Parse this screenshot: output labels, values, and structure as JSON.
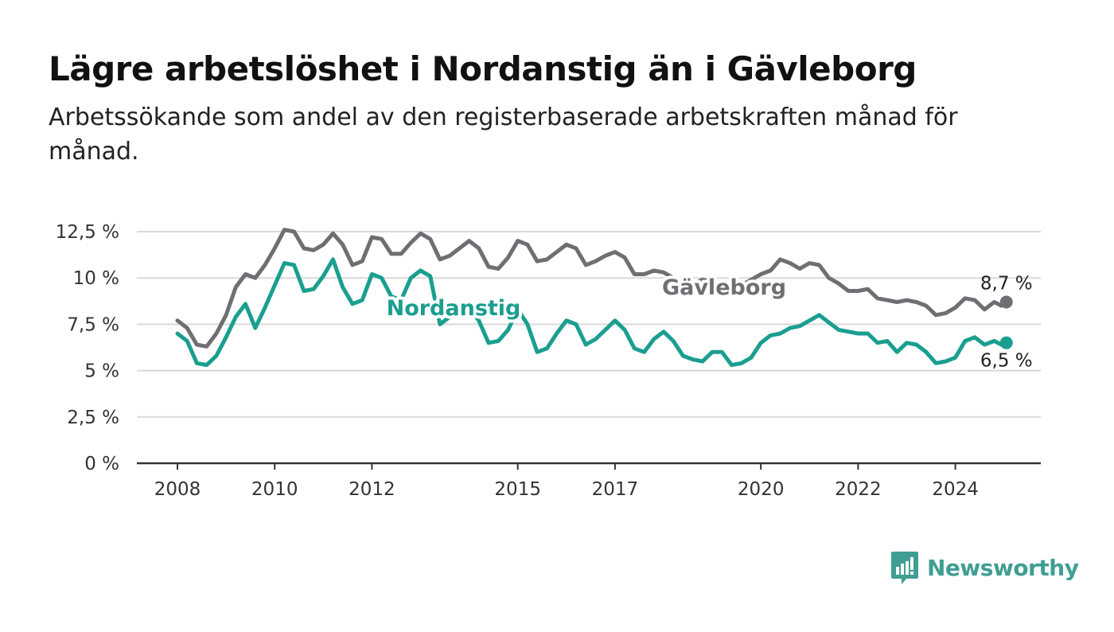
{
  "title": "Lägre arbetslöshet i Nordanstig än i Gävleborg",
  "subtitle": "Arbetssökande som andel av den registerbaserade arbetskraften månad för månad.",
  "brand": {
    "name": "Newsworthy",
    "icon": "newsworthy-logo-icon",
    "color": "#3f9e92"
  },
  "colors": {
    "gavleborg": "#6f6e73",
    "nordanstig": "#1a9e8f",
    "grid": "#d9d9d9",
    "axis": "#333333"
  },
  "chart_data": {
    "type": "line",
    "title": "Lägre arbetslöshet i Nordanstig än i Gävleborg",
    "xlabel": "",
    "ylabel": "",
    "xlim": [
      2007.5,
      2026.7
    ],
    "ylim": [
      0,
      12.5
    ],
    "x_ticks": [
      {
        "value": 2008,
        "label": "2008"
      },
      {
        "value": 2010,
        "label": "2010"
      },
      {
        "value": 2012,
        "label": "2012"
      },
      {
        "value": 2015,
        "label": "2015"
      },
      {
        "value": 2017,
        "label": "2017"
      },
      {
        "value": 2020,
        "label": "2020"
      },
      {
        "value": 2022,
        "label": "2022"
      },
      {
        "value": 2024,
        "label": "2024"
      }
    ],
    "y_ticks": [
      {
        "value": 0,
        "label": "0 %"
      },
      {
        "value": 2.5,
        "label": "2,5 %"
      },
      {
        "value": 5,
        "label": "5 %"
      },
      {
        "value": 7.5,
        "label": "7,5 %"
      },
      {
        "value": 10,
        "label": "10 %"
      },
      {
        "value": 12.5,
        "label": "12,5 %"
      }
    ],
    "grid": true,
    "legend": "direct labels on lines",
    "series": [
      {
        "name": "Gävleborg",
        "color": "#6f6e73",
        "end_label": "8,7 %",
        "points": [
          [
            2008.0,
            7.7
          ],
          [
            2008.2,
            7.3
          ],
          [
            2008.4,
            6.4
          ],
          [
            2008.6,
            6.3
          ],
          [
            2008.8,
            7.0
          ],
          [
            2009.0,
            8.0
          ],
          [
            2009.2,
            9.5
          ],
          [
            2009.4,
            10.2
          ],
          [
            2009.6,
            10.0
          ],
          [
            2009.8,
            10.7
          ],
          [
            2010.0,
            11.6
          ],
          [
            2010.2,
            12.6
          ],
          [
            2010.4,
            12.5
          ],
          [
            2010.6,
            11.6
          ],
          [
            2010.8,
            11.5
          ],
          [
            2011.0,
            11.8
          ],
          [
            2011.2,
            12.4
          ],
          [
            2011.4,
            11.8
          ],
          [
            2011.6,
            10.7
          ],
          [
            2011.8,
            10.9
          ],
          [
            2012.0,
            12.2
          ],
          [
            2012.2,
            12.1
          ],
          [
            2012.4,
            11.3
          ],
          [
            2012.6,
            11.3
          ],
          [
            2012.8,
            11.9
          ],
          [
            2013.0,
            12.4
          ],
          [
            2013.2,
            12.1
          ],
          [
            2013.4,
            11.0
          ],
          [
            2013.6,
            11.2
          ],
          [
            2013.8,
            11.6
          ],
          [
            2014.0,
            12.0
          ],
          [
            2014.2,
            11.6
          ],
          [
            2014.4,
            10.6
          ],
          [
            2014.6,
            10.5
          ],
          [
            2014.8,
            11.1
          ],
          [
            2015.0,
            12.0
          ],
          [
            2015.2,
            11.8
          ],
          [
            2015.4,
            10.9
          ],
          [
            2015.6,
            11.0
          ],
          [
            2015.8,
            11.4
          ],
          [
            2016.0,
            11.8
          ],
          [
            2016.2,
            11.6
          ],
          [
            2016.4,
            10.7
          ],
          [
            2016.6,
            10.9
          ],
          [
            2016.8,
            11.2
          ],
          [
            2017.0,
            11.4
          ],
          [
            2017.2,
            11.1
          ],
          [
            2017.4,
            10.2
          ],
          [
            2017.6,
            10.2
          ],
          [
            2017.8,
            10.4
          ],
          [
            2018.0,
            10.3
          ],
          [
            2018.2,
            10.0
          ],
          [
            2018.4,
            9.6
          ],
          [
            2018.6,
            9.7
          ],
          [
            2018.8,
            9.9
          ],
          [
            2019.0,
            9.8
          ],
          [
            2019.2,
            9.6
          ],
          [
            2019.4,
            9.5
          ],
          [
            2019.6,
            9.6
          ],
          [
            2019.8,
            9.9
          ],
          [
            2020.0,
            10.2
          ],
          [
            2020.2,
            10.4
          ],
          [
            2020.4,
            11.0
          ],
          [
            2020.6,
            10.8
          ],
          [
            2020.8,
            10.5
          ],
          [
            2021.0,
            10.8
          ],
          [
            2021.2,
            10.7
          ],
          [
            2021.4,
            10.0
          ],
          [
            2021.6,
            9.7
          ],
          [
            2021.8,
            9.3
          ],
          [
            2022.0,
            9.3
          ],
          [
            2022.2,
            9.4
          ],
          [
            2022.4,
            8.9
          ],
          [
            2022.6,
            8.8
          ],
          [
            2022.8,
            8.7
          ],
          [
            2023.0,
            8.8
          ],
          [
            2023.2,
            8.7
          ],
          [
            2023.4,
            8.5
          ],
          [
            2023.6,
            8.0
          ],
          [
            2023.8,
            8.1
          ],
          [
            2024.0,
            8.4
          ],
          [
            2024.2,
            8.9
          ],
          [
            2024.4,
            8.8
          ],
          [
            2024.6,
            8.3
          ],
          [
            2024.8,
            8.7
          ],
          [
            2024.95,
            8.5
          ],
          [
            2025.05,
            8.7
          ]
        ]
      },
      {
        "name": "Nordanstig",
        "color": "#1a9e8f",
        "end_label": "6,5 %",
        "points": [
          [
            2008.0,
            7.0
          ],
          [
            2008.2,
            6.6
          ],
          [
            2008.4,
            5.4
          ],
          [
            2008.6,
            5.3
          ],
          [
            2008.8,
            5.8
          ],
          [
            2009.0,
            6.8
          ],
          [
            2009.2,
            7.9
          ],
          [
            2009.4,
            8.6
          ],
          [
            2009.6,
            7.3
          ],
          [
            2009.8,
            8.4
          ],
          [
            2010.0,
            9.6
          ],
          [
            2010.2,
            10.8
          ],
          [
            2010.4,
            10.7
          ],
          [
            2010.6,
            9.3
          ],
          [
            2010.8,
            9.4
          ],
          [
            2011.0,
            10.1
          ],
          [
            2011.2,
            11.0
          ],
          [
            2011.4,
            9.5
          ],
          [
            2011.6,
            8.6
          ],
          [
            2011.8,
            8.8
          ],
          [
            2012.0,
            10.2
          ],
          [
            2012.2,
            10.0
          ],
          [
            2012.4,
            9.0
          ],
          [
            2012.6,
            8.8
          ],
          [
            2012.8,
            10.0
          ],
          [
            2013.0,
            10.4
          ],
          [
            2013.2,
            10.1
          ],
          [
            2013.4,
            7.5
          ],
          [
            2013.6,
            7.9
          ],
          [
            2013.8,
            8.3
          ],
          [
            2014.0,
            8.4
          ],
          [
            2014.2,
            7.7
          ],
          [
            2014.4,
            6.5
          ],
          [
            2014.6,
            6.6
          ],
          [
            2014.8,
            7.2
          ],
          [
            2015.0,
            8.3
          ],
          [
            2015.2,
            7.5
          ],
          [
            2015.4,
            6.0
          ],
          [
            2015.6,
            6.2
          ],
          [
            2015.8,
            7.0
          ],
          [
            2016.0,
            7.7
          ],
          [
            2016.2,
            7.5
          ],
          [
            2016.4,
            6.4
          ],
          [
            2016.6,
            6.7
          ],
          [
            2016.8,
            7.2
          ],
          [
            2017.0,
            7.7
          ],
          [
            2017.2,
            7.2
          ],
          [
            2017.4,
            6.2
          ],
          [
            2017.6,
            6.0
          ],
          [
            2017.8,
            6.7
          ],
          [
            2018.0,
            7.1
          ],
          [
            2018.2,
            6.6
          ],
          [
            2018.4,
            5.8
          ],
          [
            2018.6,
            5.6
          ],
          [
            2018.8,
            5.5
          ],
          [
            2019.0,
            6.0
          ],
          [
            2019.2,
            6.0
          ],
          [
            2019.4,
            5.3
          ],
          [
            2019.6,
            5.4
          ],
          [
            2019.8,
            5.7
          ],
          [
            2020.0,
            6.5
          ],
          [
            2020.2,
            6.9
          ],
          [
            2020.4,
            7.0
          ],
          [
            2020.6,
            7.3
          ],
          [
            2020.8,
            7.4
          ],
          [
            2021.0,
            7.7
          ],
          [
            2021.2,
            8.0
          ],
          [
            2021.4,
            7.6
          ],
          [
            2021.6,
            7.2
          ],
          [
            2021.8,
            7.1
          ],
          [
            2022.0,
            7.0
          ],
          [
            2022.2,
            7.0
          ],
          [
            2022.4,
            6.5
          ],
          [
            2022.6,
            6.6
          ],
          [
            2022.8,
            6.0
          ],
          [
            2023.0,
            6.5
          ],
          [
            2023.2,
            6.4
          ],
          [
            2023.4,
            6.0
          ],
          [
            2023.6,
            5.4
          ],
          [
            2023.8,
            5.5
          ],
          [
            2024.0,
            5.7
          ],
          [
            2024.2,
            6.6
          ],
          [
            2024.4,
            6.8
          ],
          [
            2024.6,
            6.4
          ],
          [
            2024.8,
            6.6
          ],
          [
            2024.95,
            6.4
          ],
          [
            2025.05,
            6.5
          ]
        ]
      }
    ]
  }
}
